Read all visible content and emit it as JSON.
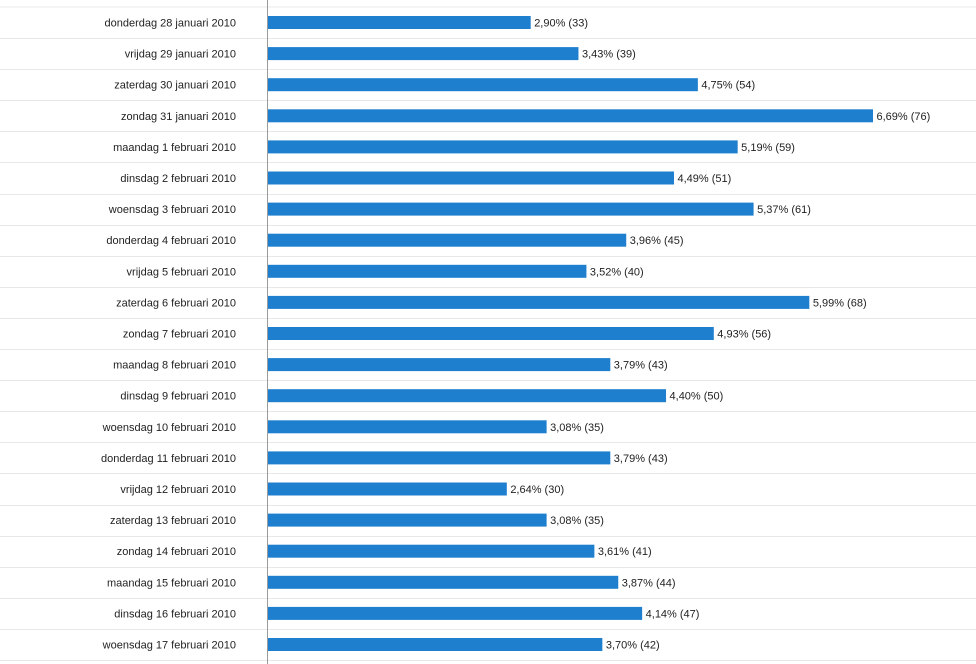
{
  "chart_data": {
    "type": "bar",
    "orientation": "horizontal",
    "categories": [
      "donderdag 28 januari 2010",
      "vrijdag 29 januari 2010",
      "zaterdag 30 januari 2010",
      "zondag 31 januari 2010",
      "maandag 1 februari 2010",
      "dinsdag 2 februari 2010",
      "woensdag 3 februari 2010",
      "donderdag 4 februari 2010",
      "vrijdag 5 februari 2010",
      "zaterdag 6 februari 2010",
      "zondag 7 februari 2010",
      "maandag 8 februari 2010",
      "dinsdag 9 februari 2010",
      "woensdag 10 februari 2010",
      "donderdag 11 februari 2010",
      "vrijdag 12 februari 2010",
      "zaterdag 13 februari 2010",
      "zondag 14 februari 2010",
      "maandag 15 februari 2010",
      "dinsdag 16 februari 2010",
      "woensdag 17 februari 2010"
    ],
    "values": [
      33,
      39,
      54,
      76,
      59,
      51,
      61,
      45,
      40,
      68,
      56,
      43,
      50,
      35,
      43,
      30,
      35,
      41,
      44,
      47,
      42
    ],
    "value_labels": [
      "2,90% (33)",
      "3,43% (39)",
      "4,75% (54)",
      "6,69% (76)",
      "5,19% (59)",
      "4,49% (51)",
      "5,37% (61)",
      "3,96% (45)",
      "3,52% (40)",
      "5,99% (68)",
      "4,93% (56)",
      "3,79% (43)",
      "4,40% (50)",
      "3,08% (35)",
      "3,79% (43)",
      "2,64% (30)",
      "3,08% (35)",
      "3,61% (41)",
      "3,87% (44)",
      "4,14% (47)",
      "3,70% (42)"
    ],
    "xlim": [
      0,
      76
    ],
    "grid": "horizontal-row-separators",
    "legend": "none",
    "colors": {
      "bar": "#1f7fcf",
      "grid": "#e8e8e8",
      "axis": "#9a9a9a"
    }
  }
}
